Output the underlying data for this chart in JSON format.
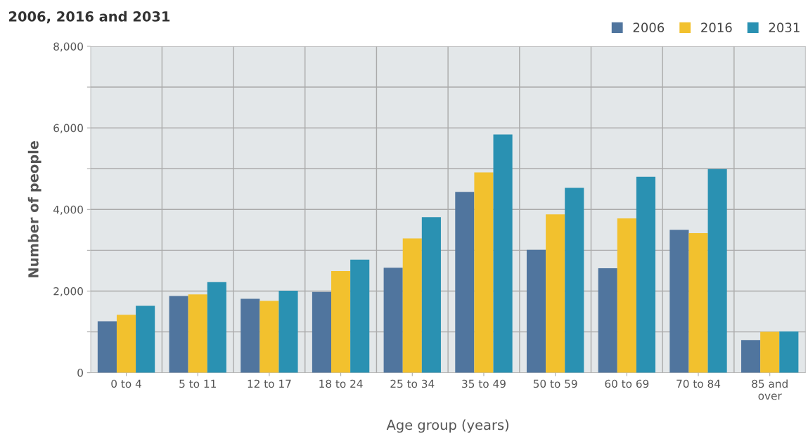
{
  "chart_data": {
    "type": "bar",
    "title": "2006, 2016 and 2031",
    "xlabel": "Age group (years)",
    "ylabel": "Number of people",
    "categories": [
      "0 to 4",
      "5 to 11",
      "12 to 17",
      "18 to 24",
      "25 to 34",
      "35 to 49",
      "50 to 59",
      "60 to 69",
      "70 to 84",
      "85 and\nover"
    ],
    "series": [
      {
        "name": "2006",
        "color": "#50759e",
        "values": [
          1260,
          1880,
          1810,
          1980,
          2570,
          4430,
          3010,
          2560,
          3500,
          800
        ]
      },
      {
        "name": "2016",
        "color": "#f2c12e",
        "values": [
          1420,
          1920,
          1760,
          2490,
          3290,
          4910,
          3880,
          3780,
          3420,
          1000
        ]
      },
      {
        "name": "2031",
        "color": "#2a91b2",
        "values": [
          1640,
          2220,
          2010,
          2770,
          3810,
          5840,
          4530,
          4800,
          4990,
          1010
        ]
      }
    ],
    "ylim": [
      0,
      8000
    ],
    "yticks": [
      0,
      {
        "value": 1000,
        "label": null
      },
      {
        "value": 2000,
        "label": "2,000"
      },
      {
        "value": 3000,
        "label": null
      },
      {
        "value": 4000,
        "label": "4,000"
      },
      {
        "value": 5000,
        "label": null
      },
      {
        "value": 6000,
        "label": "6,000"
      },
      {
        "value": 7000,
        "label": null
      },
      {
        "value": 8000,
        "label": "8,000"
      }
    ],
    "grid": true,
    "legend": "top right"
  }
}
